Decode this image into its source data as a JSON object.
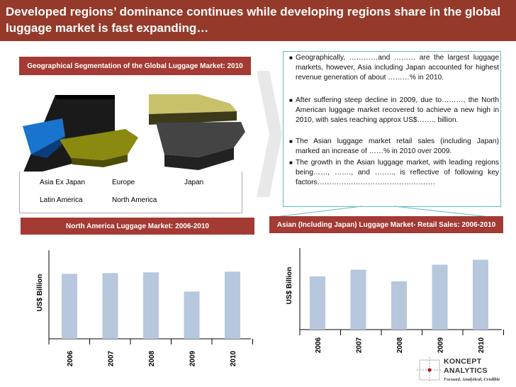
{
  "title": "Developed regions’ dominance continues while developing regions share in the global luggage market is fast expanding…",
  "pie_chart": {
    "label": "Geographical Segmentation of the Global Luggage Market: 2010",
    "legend": [
      "Asia Ex Japan",
      "Europe",
      "Japan",
      "Latin America",
      "North America"
    ]
  },
  "bullets": [
    "Geographically, …………and ……… are the largest luggage markets, however, Asia including Japan accounted for highest revenue generation of about ………% in 2010.",
    "After suffering steep decline in 2009, due to………, the North American luggage market recovered to achieve a new high in 2010, with sales reaching approx US$…….. billion.",
    "The Asian luggage market retail sales (including Japan) marked an increase of ……% in 2010 over 2009.",
    "The growth in the Asian luggage market, with leading regions being……, ……., and …….., is reflective of following key factors…………………………………………."
  ],
  "chart_data": [
    {
      "type": "pie",
      "title": "Geographical Segmentation of the Global Luggage Market: 2010",
      "categories": [
        "Asia Ex Japan",
        "Europe",
        "Japan",
        "Latin America",
        "North America"
      ],
      "values": [
        7,
        20,
        22,
        16,
        35
      ],
      "colors": [
        "#1874cd",
        "#8c8c10",
        "#444444",
        "#c9c16a",
        "#000000"
      ]
    },
    {
      "type": "bar",
      "title": "North America Luggage Market: 2006-2010",
      "categories": [
        "2006",
        "2007",
        "2008",
        "2009",
        "2010"
      ],
      "values": [
        88,
        89,
        90,
        64,
        91
      ],
      "ylabel": "US$ Billion",
      "ylim": [
        0,
        120
      ],
      "grid": false,
      "color": "#b7c7dd"
    },
    {
      "type": "bar",
      "title": "Asian (Including Japan) Luggage Market- Retail Sales: 2006-2010",
      "categories": [
        "2006",
        "2007",
        "2008",
        "2009",
        "2010"
      ],
      "values": [
        64,
        72,
        58,
        78,
        84
      ],
      "ylabel": "US$ Billion",
      "ylim": [
        0,
        98
      ],
      "grid": false,
      "color": "#b7c7dd"
    }
  ],
  "logo": {
    "line1": "KONCEPT",
    "line2": "ANALYTICS",
    "tagline": "Focused, Analytical, Credible"
  }
}
